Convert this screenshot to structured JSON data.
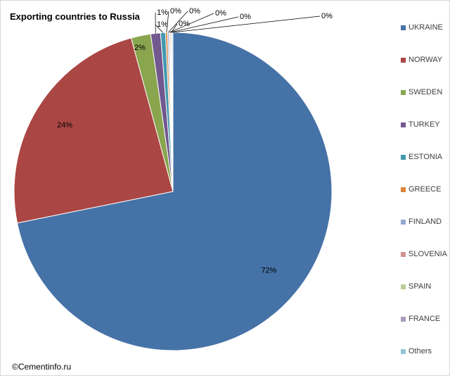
{
  "chart_data": {
    "type": "pie",
    "title": "Exporting countries to Russia",
    "legend_position": "right",
    "slices": [
      {
        "label": "UKRAINE",
        "value": 72,
        "value_label": "72%",
        "color": "#4572a7"
      },
      {
        "label": "NORWAY",
        "value": 24,
        "value_label": "24%",
        "color": "#aa4643"
      },
      {
        "label": "SWEDEN",
        "value": 2,
        "value_label": "2%",
        "color": "#89a54e"
      },
      {
        "label": "TURKEY",
        "value": 1,
        "value_label": "1%",
        "color": "#71588f"
      },
      {
        "label": "ESTONIA",
        "value": 0.5,
        "value_label": "1%",
        "color": "#4198af"
      },
      {
        "label": "GREECE",
        "value": 0.2,
        "value_label": "0%",
        "color": "#db843d"
      },
      {
        "label": "FINLAND",
        "value": 0.15,
        "value_label": "0%",
        "color": "#93a9cf"
      },
      {
        "label": "SLOVENIA",
        "value": 0.1,
        "value_label": "0%",
        "color": "#d19392"
      },
      {
        "label": "SPAIN",
        "value": 0.1,
        "value_label": "0%",
        "color": "#b9cd96"
      },
      {
        "label": "FRANCE",
        "value": 0.1,
        "value_label": "0%",
        "color": "#a99bbd"
      },
      {
        "label": "Others",
        "value": 0.1,
        "value_label": "0%",
        "color": "#92c5d6"
      }
    ]
  },
  "copyright": "©Cementinfo.ru"
}
